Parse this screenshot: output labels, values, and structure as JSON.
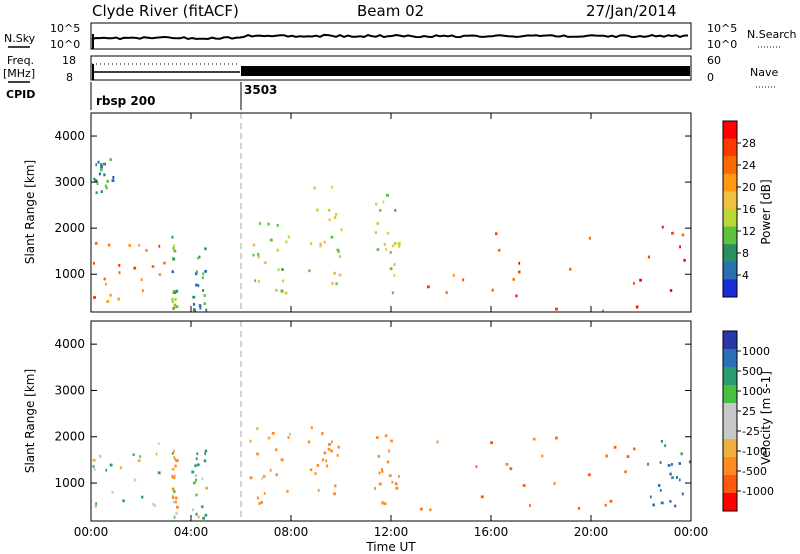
{
  "header": {
    "station": "Clyde River (fitACF)",
    "beam": "Beam 02",
    "date": "27/Jan/2014"
  },
  "status_panel": {
    "nsky_label": "N.Sky",
    "nsky_ticks": [
      "10^5",
      "10^0"
    ],
    "nsearch_label": "N.Search",
    "nsearch_ticks": [
      "10^5",
      "10^0"
    ],
    "freq_label_1": "Freq.",
    "freq_label_2": "[MHz]",
    "freq_ticks": [
      "18",
      "8"
    ],
    "nave_label": "Nave",
    "nave_ticks": [
      "60",
      "0"
    ],
    "cpid_label": "CPID",
    "cpid_segments": [
      {
        "name": "rbsp 200",
        "start_hour": 0
      },
      {
        "name": "3503",
        "start_hour": 6
      }
    ]
  },
  "axes": {
    "ylabel": "Slant Range [km]",
    "xlabel": "Time UT",
    "yticks": [
      "4000",
      "3000",
      "2000",
      "1000"
    ],
    "xticks": [
      "00:00",
      "04:00",
      "08:00",
      "12:00",
      "16:00",
      "20:00",
      "00:00"
    ]
  },
  "colorbars": {
    "power": {
      "label": "Power [dB]",
      "ticks": [
        "28",
        "24",
        "20",
        "16",
        "12",
        "8",
        "4"
      ],
      "colors": [
        "#ff0000",
        "#ff3a00",
        "#ff6a00",
        "#ff9a10",
        "#f0c040",
        "#b8d838",
        "#60c040",
        "#289060",
        "#2a6fb0",
        "#1a2ed8"
      ]
    },
    "velocity": {
      "label": "Velocity [m s-1]",
      "ticks": [
        "1000",
        "500",
        "100",
        "25",
        "-25",
        "-100",
        "-500",
        "-1000"
      ],
      "colors": [
        "#2838a8",
        "#2a70b8",
        "#2a9a70",
        "#48c040",
        "#c8c8c8",
        "#c8c8c8",
        "#f0b040",
        "#ff8a20",
        "#ff5a10",
        "#ff0000"
      ]
    }
  },
  "chart_data": [
    {
      "type": "heatmap",
      "title": "Power",
      "xlabel": "Time UT",
      "ylabel": "Slant Range [km]",
      "x_range_hours": [
        0,
        24
      ],
      "ylim_km": [
        180,
        4500
      ],
      "color_ticks": [
        4,
        8,
        12,
        16,
        20,
        24,
        28
      ],
      "regions": [
        {
          "t0": 0.0,
          "t1": 2.9,
          "r0": 400,
          "r1": 1850,
          "value": 24
        },
        {
          "t0": 0.0,
          "t1": 0.9,
          "r0": 2750,
          "r1": 3500,
          "value": 8
        },
        {
          "t0": 3.2,
          "t1": 3.4,
          "r0": 250,
          "r1": 1850,
          "value": 10
        },
        {
          "t0": 4.0,
          "t1": 4.6,
          "r0": 200,
          "r1": 1700,
          "value": 9
        },
        {
          "t0": 6.3,
          "t1": 8.0,
          "r0": 550,
          "r1": 2200,
          "value": 14
        },
        {
          "t0": 8.6,
          "t1": 10.0,
          "r0": 750,
          "r1": 2900,
          "value": 14
        },
        {
          "t0": 11.3,
          "t1": 12.3,
          "r0": 550,
          "r1": 2750,
          "value": 14
        },
        {
          "t0": 13.0,
          "t1": 24.0,
          "r0": 200,
          "r1": 2200,
          "value": 26
        }
      ]
    },
    {
      "type": "heatmap",
      "title": "Velocity",
      "xlabel": "Time UT",
      "ylabel": "Slant Range [km]",
      "x_range_hours": [
        0,
        24
      ],
      "ylim_km": [
        180,
        4500
      ],
      "color_ticks": [
        -1000,
        -500,
        -100,
        -25,
        25,
        100,
        500,
        1000
      ],
      "regions": [
        {
          "t0": 0.0,
          "t1": 2.9,
          "r0": 400,
          "r1": 1850,
          "value": 100
        },
        {
          "t0": 3.2,
          "t1": 3.4,
          "r0": 250,
          "r1": 1850,
          "value": -100
        },
        {
          "t0": 4.0,
          "t1": 4.6,
          "r0": 200,
          "r1": 1700,
          "value": 100
        },
        {
          "t0": 6.3,
          "t1": 8.0,
          "r0": 550,
          "r1": 2200,
          "value": -200
        },
        {
          "t0": 8.6,
          "t1": 10.0,
          "r0": 750,
          "r1": 2200,
          "value": -300
        },
        {
          "t0": 11.3,
          "t1": 12.3,
          "r0": 550,
          "r1": 2100,
          "value": -300
        },
        {
          "t0": 13.0,
          "t1": 22.0,
          "r0": 400,
          "r1": 2100,
          "value": -600
        },
        {
          "t0": 22.0,
          "t1": 24.0,
          "r0": 500,
          "r1": 1900,
          "value": 600
        }
      ]
    }
  ]
}
